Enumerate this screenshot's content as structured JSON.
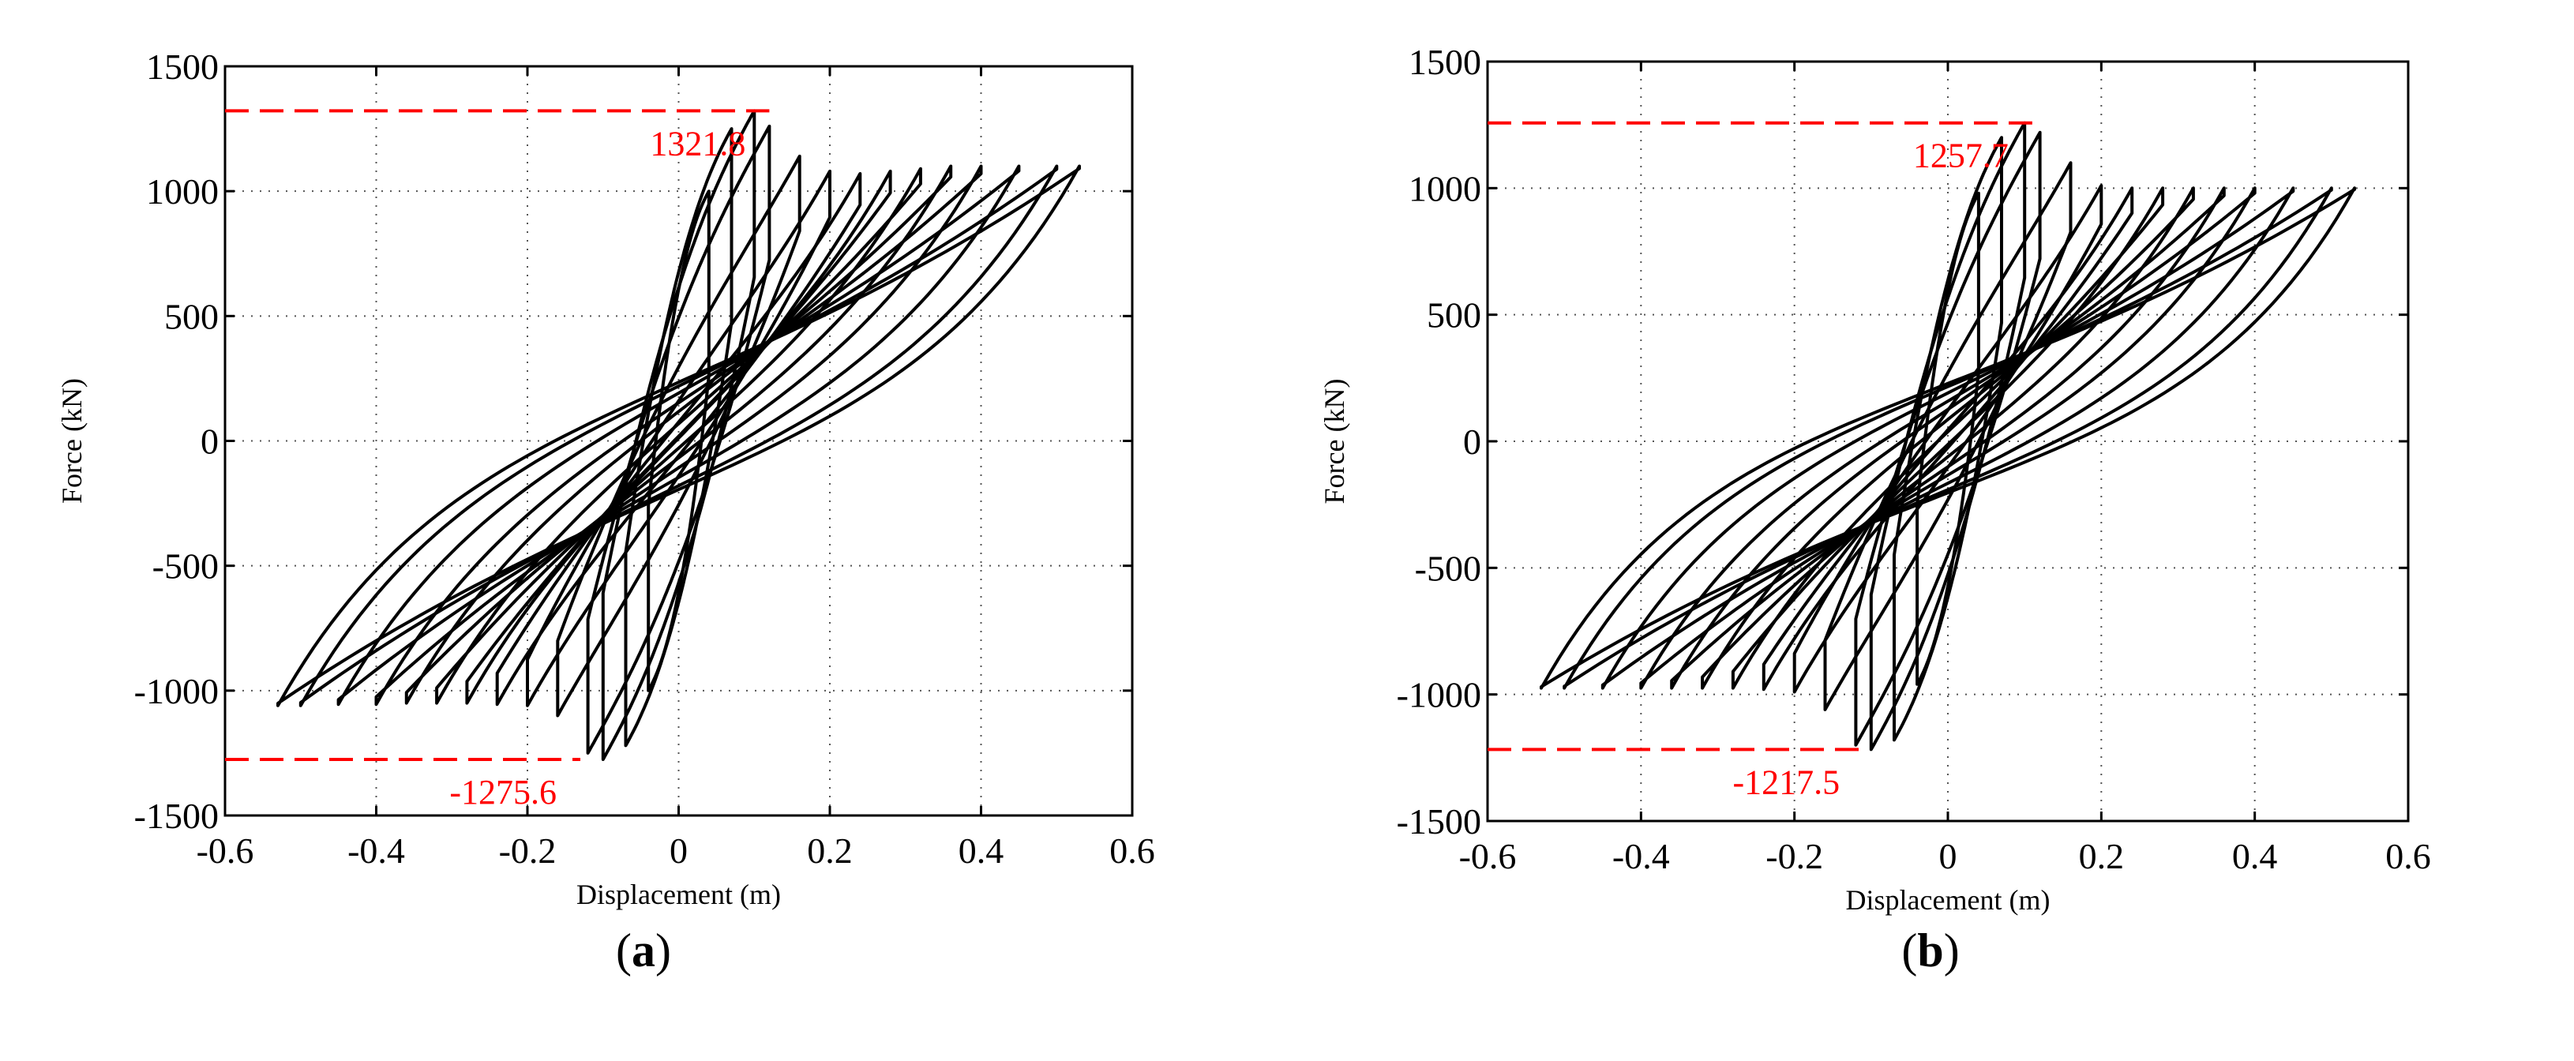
{
  "chart_data": [
    {
      "type": "line",
      "panel_label": "a",
      "caption_open": "(",
      "caption_close": ")",
      "xlabel": "Displacement (m)",
      "ylabel": "Force (kN)",
      "xlim": [
        -0.6,
        0.6
      ],
      "ylim": [
        -1500,
        1500
      ],
      "xticks": [
        -0.6,
        -0.4,
        -0.2,
        0,
        0.2,
        0.4,
        0.6
      ],
      "xtick_labels": [
        "-0.6",
        "-0.4",
        "-0.2",
        "0",
        "0.2",
        "0.4",
        "0.6"
      ],
      "yticks": [
        1500,
        1000,
        500,
        0,
        -500,
        -1000,
        -1500
      ],
      "ytick_labels": [
        "1500",
        "1000",
        "500",
        "0",
        "-500",
        "-1000",
        "-1500"
      ],
      "grid": true,
      "series": [
        {
          "name": "hysteresis loops",
          "amplitudes_m": [
            0.04,
            0.07,
            0.1,
            0.12,
            0.16,
            0.2,
            0.24,
            0.28,
            0.32,
            0.36,
            0.4,
            0.45,
            0.5,
            0.53
          ],
          "peak_force_kN": [
            1000,
            1250,
            1321.8,
            1260,
            1140,
            1080,
            1070,
            1080,
            1090,
            1100,
            1100,
            1100,
            1100,
            1100
          ],
          "trough_force_kN": [
            -1000,
            -1220,
            -1275.6,
            -1250,
            -1100,
            -1060,
            -1055,
            -1050,
            -1050,
            -1050,
            -1055,
            -1055,
            -1060,
            -1060
          ]
        }
      ],
      "annotations": [
        {
          "text": "1321.8",
          "value": 1321.8,
          "x_start": -0.6,
          "x_end": 0.12,
          "color": "#ff0000"
        },
        {
          "text": "-1275.6",
          "value": -1275.6,
          "x_start": -0.6,
          "x_end": -0.13,
          "color": "#ff0000"
        }
      ]
    },
    {
      "type": "line",
      "panel_label": "b",
      "caption_open": "(",
      "caption_close": ")",
      "xlabel": "Displacement (m)",
      "ylabel": "Force (kN)",
      "xlim": [
        -0.6,
        0.6
      ],
      "ylim": [
        -1500,
        1500
      ],
      "xticks": [
        -0.6,
        -0.4,
        -0.2,
        0,
        0.2,
        0.4,
        0.6
      ],
      "xtick_labels": [
        "-0.6",
        "-0.4",
        "-0.2",
        "0",
        "0.2",
        "0.4",
        "0.6"
      ],
      "yticks": [
        1500,
        1000,
        500,
        0,
        -500,
        -1000,
        -1500
      ],
      "ytick_labels": [
        "1500",
        "1000",
        "500",
        "0",
        "-500",
        "-1000",
        "-1500"
      ],
      "grid": true,
      "series": [
        {
          "name": "hysteresis loops",
          "amplitudes_m": [
            0.04,
            0.07,
            0.1,
            0.12,
            0.16,
            0.2,
            0.24,
            0.28,
            0.32,
            0.36,
            0.4,
            0.45,
            0.5,
            0.53
          ],
          "peak_force_kN": [
            980,
            1200,
            1257.7,
            1220,
            1100,
            1010,
            1000,
            1000,
            1000,
            1000,
            1000,
            1000,
            1000,
            1000
          ],
          "trough_force_kN": [
            -960,
            -1180,
            -1217.5,
            -1200,
            -1060,
            -990,
            -980,
            -975,
            -975,
            -975,
            -975,
            -975,
            -975,
            -975
          ]
        }
      ],
      "annotations": [
        {
          "text": "1257.7",
          "value": 1257.7,
          "x_start": -0.6,
          "x_end": 0.11,
          "color": "#ff0000"
        },
        {
          "text": "-1217.5",
          "value": -1217.5,
          "x_start": -0.6,
          "x_end": -0.11,
          "color": "#ff0000"
        }
      ]
    }
  ]
}
